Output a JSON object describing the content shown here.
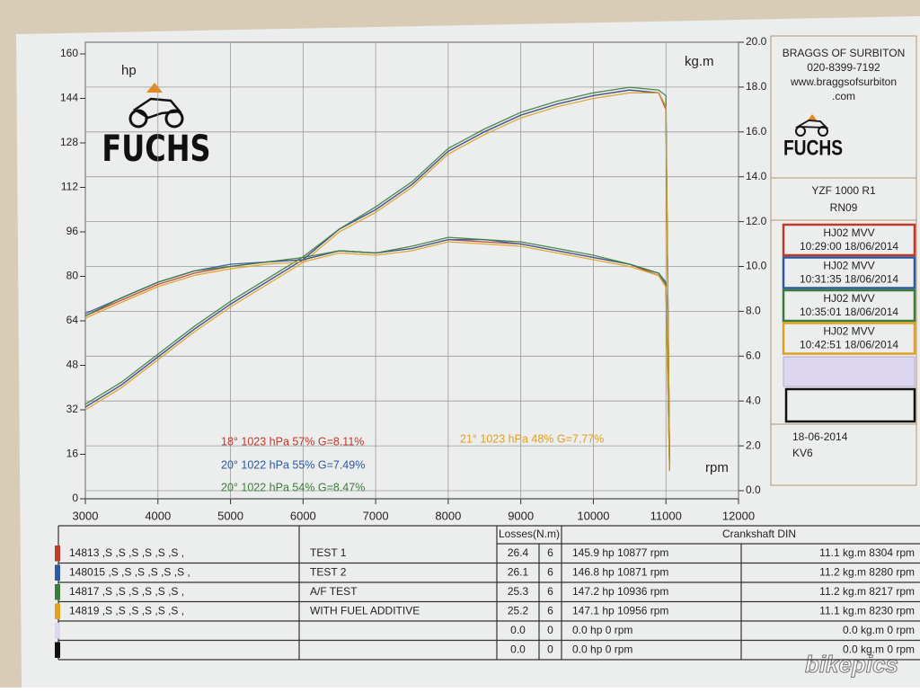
{
  "chart_data": {
    "type": "line",
    "logo": "FUCHS",
    "y_label": "hp",
    "y2_label": "kg.m",
    "x_label": "rpm",
    "xlim": [
      3000,
      12000
    ],
    "xticks": [
      3000,
      4000,
      5000,
      6000,
      7000,
      8000,
      9000,
      10000,
      11000,
      12000
    ],
    "ylim": [
      0,
      160
    ],
    "yticks": [
      0,
      16,
      32,
      48,
      64,
      80,
      96,
      112,
      128,
      144,
      160
    ],
    "y2lim": [
      0,
      20
    ],
    "y2ticks": [
      {
        "value": 0,
        "label": "0.0"
      },
      {
        "value": 2,
        "label": "2.0"
      },
      {
        "value": 4,
        "label": "4.0"
      },
      {
        "value": 6,
        "label": "6.0"
      },
      {
        "value": 8,
        "label": "8.0"
      },
      {
        "value": 10,
        "label": "10.0"
      },
      {
        "value": 12,
        "label": "12.0"
      },
      {
        "value": 14,
        "label": "14.0"
      },
      {
        "value": 16,
        "label": "16.0"
      },
      {
        "value": 18,
        "label": "18.0"
      },
      {
        "value": 20,
        "label": "20.0"
      }
    ],
    "grid": true,
    "x": [
      3000,
      3500,
      4000,
      4500,
      5000,
      5500,
      6000,
      6500,
      7000,
      7500,
      8000,
      8500,
      9000,
      9500,
      10000,
      10500,
      10900,
      11000,
      11050
    ],
    "series": [
      {
        "color": "#c0392b",
        "values": [
          33,
          41,
          51,
          61,
          70,
          78,
          86,
          97,
          104,
          113,
          125,
          132,
          138,
          142,
          145,
          147,
          146,
          140,
          10
        ]
      },
      {
        "color": "#2c5aa0",
        "values": [
          33,
          41,
          51,
          61,
          70,
          78,
          86,
          97,
          104,
          113,
          125,
          132,
          138,
          142,
          145,
          147,
          146,
          141,
          11
        ]
      },
      {
        "color": "#3a7d3a",
        "values": [
          34,
          42,
          52,
          62,
          71,
          79,
          87,
          97,
          105,
          114,
          126,
          133,
          139,
          143,
          146,
          148,
          147,
          145,
          12
        ]
      },
      {
        "color": "#e0a020",
        "values": [
          32,
          40,
          50,
          60,
          69,
          77,
          85,
          96,
          103,
          112,
          124,
          131,
          137,
          141,
          144,
          146,
          146,
          141,
          10
        ]
      },
      {
        "color": "#c0392b",
        "axis": "y2",
        "values": [
          7.8,
          8.5,
          9.2,
          9.7,
          10.0,
          10.2,
          10.3,
          10.7,
          10.6,
          10.8,
          11.2,
          11.1,
          11.0,
          10.7,
          10.4,
          10.1,
          9.6,
          9.1,
          0.9
        ]
      },
      {
        "color": "#2c5aa0",
        "axis": "y2",
        "values": [
          7.9,
          8.6,
          9.3,
          9.8,
          10.1,
          10.2,
          10.3,
          10.7,
          10.6,
          10.8,
          11.2,
          11.2,
          11.0,
          10.7,
          10.4,
          10.1,
          9.7,
          9.3,
          1.0
        ]
      },
      {
        "color": "#3a7d3a",
        "axis": "y2",
        "values": [
          7.8,
          8.6,
          9.3,
          9.8,
          10.0,
          10.2,
          10.4,
          10.7,
          10.6,
          10.9,
          11.3,
          11.2,
          11.1,
          10.8,
          10.5,
          10.1,
          9.7,
          9.2,
          1.1
        ]
      },
      {
        "color": "#e0a020",
        "axis": "y2",
        "values": [
          7.7,
          8.4,
          9.1,
          9.6,
          9.9,
          10.1,
          10.2,
          10.6,
          10.5,
          10.7,
          11.1,
          11.0,
          10.9,
          10.6,
          10.3,
          10.0,
          9.6,
          9.1,
          0.9
        ]
      }
    ],
    "annotations": [
      {
        "text": "18°  1023 hPa  57%   G=8.11%",
        "color": "#c0392b"
      },
      {
        "text": "20°  1022 hPa  55%   G=7.49%",
        "color": "#2c5aa0"
      },
      {
        "text": "20°  1022 hPa  54%   G=8.47%",
        "color": "#3a7d3a"
      },
      {
        "text": "21°  1023 hPa  48%   G=7.77%",
        "color": "#e0a020"
      }
    ]
  },
  "sidebar": {
    "header": [
      "BRAGGS OF SURBITON",
      "020-8399-7192",
      "www.braggsofsurbiton",
      ".com"
    ],
    "logo": "FUCHS",
    "model": [
      "YZF 1000 R1",
      "RN09"
    ],
    "runs": [
      {
        "reg": "HJ02 MVV",
        "time": "10:29:00  18/06/2014"
      },
      {
        "reg": "HJ02 MVV",
        "time": "10:31:35  18/06/2014"
      },
      {
        "reg": "HJ02 MVV",
        "time": "10:35:01  18/06/2014"
      },
      {
        "reg": "HJ02 MVV",
        "time": "10:42:51  18/06/2014"
      }
    ],
    "footer": [
      "18-06-2014",
      "KV6"
    ]
  },
  "table": {
    "header": [
      "Losses(N.m)",
      "Crankshaft DIN"
    ],
    "rows": [
      [
        "14813 ,S ,S ,S ,S ,S ,S ,",
        "TEST 1",
        "26.4",
        "6",
        "145.9 hp 10877 rpm",
        "11.1 kg.m 8304 rpm"
      ],
      [
        "148015 ,S ,S ,S ,S ,S ,S ,",
        "TEST 2",
        "26.1",
        "6",
        "146.8 hp 10871 rpm",
        "11.2 kg.m 8280 rpm"
      ],
      [
        "14817 ,S ,S ,S ,S ,S ,S ,",
        "A/F TEST",
        "25.3",
        "6",
        "147.2 hp 10936 rpm",
        "11.2 kg.m 8217 rpm"
      ],
      [
        "14819 ,S ,S ,S ,S ,S ,S ,",
        "WITH FUEL ADDITIVE",
        "25.2",
        "6",
        "147.1 hp 10956 rpm",
        "11.1 kg.m 8230 rpm"
      ],
      [
        null,
        null,
        "0.0",
        "0",
        "0.0 hp 0 rpm",
        "0.0 kg.m 0 rpm"
      ],
      [
        null,
        null,
        "0.0",
        "0",
        "0.0 hp 0 rpm",
        "0.0 kg.m 0 rpm"
      ]
    ]
  },
  "watermark": "bikepics"
}
